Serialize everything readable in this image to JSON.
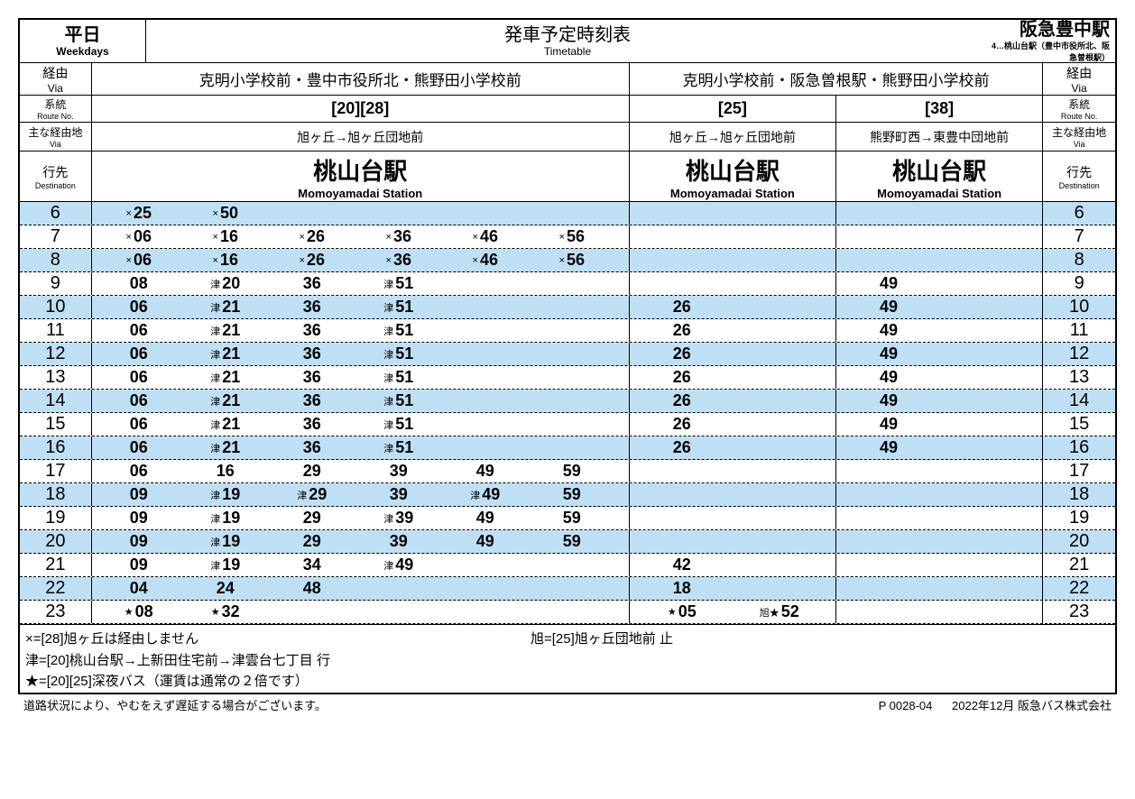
{
  "colors": {
    "stripe": "#bfdff5",
    "border": "#000000",
    "bg": "#ffffff",
    "text": "#000000"
  },
  "fonts": {
    "main": "Hiragino Sans, Meiryo, sans-serif",
    "size_body": 14,
    "size_hour": 20,
    "size_min": 18,
    "size_dest": 26
  },
  "header": {
    "day_jp": "平日",
    "day_en": "Weekdays",
    "title_jp": "発車予定時刻表",
    "title_en": "Timetable",
    "station": "阪急豊中駅",
    "station_note": "4…桃山台駅（豊中市役所北、阪急曽根駅）"
  },
  "labels": {
    "via_jp": "経由",
    "via_en": "Via",
    "route_jp": "系統",
    "route_en": "Route No.",
    "mainvia_jp": "主な経由地",
    "mainvia_en": "Via",
    "dest_jp": "行先",
    "dest_en": "Destination"
  },
  "vias": {
    "left": "克明小学校前・豊中市役所北・熊野田小学校前",
    "right": "克明小学校前・阪急曽根駅・熊野田小学校前"
  },
  "routes": {
    "col2": {
      "no": "[20][28]",
      "via": "旭ヶ丘→旭ヶ丘団地前",
      "dest_jp": "桃山台駅",
      "dest_en": "Momoyamadai Station"
    },
    "col3": {
      "no": "[25]",
      "via": "旭ヶ丘→旭ヶ丘団地前",
      "dest_jp": "桃山台駅",
      "dest_en": "Momoyamadai Station"
    },
    "col4": {
      "no": "[38]",
      "via": "熊野町西→東豊中団地前",
      "dest_jp": "桃山台駅",
      "dest_en": "Momoyamadai Station"
    }
  },
  "hours": [
    6,
    7,
    8,
    9,
    10,
    11,
    12,
    13,
    14,
    15,
    16,
    17,
    18,
    19,
    20,
    21,
    22,
    23
  ],
  "times": {
    "6": {
      "c2": [
        {
          "p": "×",
          "m": "25"
        },
        {
          "p": "×",
          "m": "50"
        }
      ],
      "c3": [],
      "c4": []
    },
    "7": {
      "c2": [
        {
          "p": "×",
          "m": "06"
        },
        {
          "p": "×",
          "m": "16"
        },
        {
          "p": "×",
          "m": "26"
        },
        {
          "p": "×",
          "m": "36"
        },
        {
          "p": "×",
          "m": "46"
        },
        {
          "p": "×",
          "m": "56"
        }
      ],
      "c3": [],
      "c4": []
    },
    "8": {
      "c2": [
        {
          "p": "×",
          "m": "06"
        },
        {
          "p": "×",
          "m": "16"
        },
        {
          "p": "×",
          "m": "26"
        },
        {
          "p": "×",
          "m": "36"
        },
        {
          "p": "×",
          "m": "46"
        },
        {
          "p": "×",
          "m": "56"
        }
      ],
      "c3": [],
      "c4": []
    },
    "9": {
      "c2": [
        {
          "m": "08"
        },
        {
          "p": "津",
          "m": "20"
        },
        {
          "m": "36"
        },
        {
          "p": "津",
          "m": "51"
        }
      ],
      "c3": [],
      "c4": [
        {
          "m": "49"
        }
      ]
    },
    "10": {
      "c2": [
        {
          "m": "06"
        },
        {
          "p": "津",
          "m": "21"
        },
        {
          "m": "36"
        },
        {
          "p": "津",
          "m": "51"
        }
      ],
      "c3": [
        {
          "m": "26"
        }
      ],
      "c4": [
        {
          "m": "49"
        }
      ]
    },
    "11": {
      "c2": [
        {
          "m": "06"
        },
        {
          "p": "津",
          "m": "21"
        },
        {
          "m": "36"
        },
        {
          "p": "津",
          "m": "51"
        }
      ],
      "c3": [
        {
          "m": "26"
        }
      ],
      "c4": [
        {
          "m": "49"
        }
      ]
    },
    "12": {
      "c2": [
        {
          "m": "06"
        },
        {
          "p": "津",
          "m": "21"
        },
        {
          "m": "36"
        },
        {
          "p": "津",
          "m": "51"
        }
      ],
      "c3": [
        {
          "m": "26"
        }
      ],
      "c4": [
        {
          "m": "49"
        }
      ]
    },
    "13": {
      "c2": [
        {
          "m": "06"
        },
        {
          "p": "津",
          "m": "21"
        },
        {
          "m": "36"
        },
        {
          "p": "津",
          "m": "51"
        }
      ],
      "c3": [
        {
          "m": "26"
        }
      ],
      "c4": [
        {
          "m": "49"
        }
      ]
    },
    "14": {
      "c2": [
        {
          "m": "06"
        },
        {
          "p": "津",
          "m": "21"
        },
        {
          "m": "36"
        },
        {
          "p": "津",
          "m": "51"
        }
      ],
      "c3": [
        {
          "m": "26"
        }
      ],
      "c4": [
        {
          "m": "49"
        }
      ]
    },
    "15": {
      "c2": [
        {
          "m": "06"
        },
        {
          "p": "津",
          "m": "21"
        },
        {
          "m": "36"
        },
        {
          "p": "津",
          "m": "51"
        }
      ],
      "c3": [
        {
          "m": "26"
        }
      ],
      "c4": [
        {
          "m": "49"
        }
      ]
    },
    "16": {
      "c2": [
        {
          "m": "06"
        },
        {
          "p": "津",
          "m": "21"
        },
        {
          "m": "36"
        },
        {
          "p": "津",
          "m": "51"
        }
      ],
      "c3": [
        {
          "m": "26"
        }
      ],
      "c4": [
        {
          "m": "49"
        }
      ]
    },
    "17": {
      "c2": [
        {
          "m": "06"
        },
        {
          "m": "16"
        },
        {
          "m": "29"
        },
        {
          "m": "39"
        },
        {
          "m": "49"
        },
        {
          "m": "59"
        }
      ],
      "c3": [],
      "c4": []
    },
    "18": {
      "c2": [
        {
          "m": "09"
        },
        {
          "p": "津",
          "m": "19"
        },
        {
          "p": "津",
          "m": "29"
        },
        {
          "m": "39"
        },
        {
          "p": "津",
          "m": "49"
        },
        {
          "m": "59"
        }
      ],
      "c3": [],
      "c4": []
    },
    "19": {
      "c2": [
        {
          "m": "09"
        },
        {
          "p": "津",
          "m": "19"
        },
        {
          "m": "29"
        },
        {
          "p": "津",
          "m": "39"
        },
        {
          "m": "49"
        },
        {
          "m": "59"
        }
      ],
      "c3": [],
      "c4": []
    },
    "20": {
      "c2": [
        {
          "m": "09"
        },
        {
          "p": "津",
          "m": "19"
        },
        {
          "m": "29"
        },
        {
          "m": "39"
        },
        {
          "m": "49"
        },
        {
          "m": "59"
        }
      ],
      "c3": [],
      "c4": []
    },
    "21": {
      "c2": [
        {
          "m": "09"
        },
        {
          "p": "津",
          "m": "19"
        },
        {
          "m": "34"
        },
        {
          "p": "津",
          "m": "49"
        }
      ],
      "c3": [
        {
          "m": "42"
        }
      ],
      "c4": []
    },
    "22": {
      "c2": [
        {
          "m": "04"
        },
        {
          "m": "24"
        },
        {
          "m": "48"
        }
      ],
      "c3": [
        {
          "m": "18"
        }
      ],
      "c4": []
    },
    "23": {
      "c2": [
        {
          "p": "★",
          "m": "08"
        },
        {
          "p": "★",
          "m": "32"
        }
      ],
      "c3": [
        {
          "p": "★",
          "m": "05"
        },
        {
          "p": "旭★",
          "m": "52"
        }
      ],
      "c4": []
    }
  },
  "stripe_hours": [
    6,
    8,
    10,
    12,
    14,
    16,
    18,
    20,
    22
  ],
  "notes": [
    "×=[28]旭ヶ丘は経由しません",
    "津=[20]桃山台駅→上新田住宅前→津雲台七丁目 行",
    "★=[20][25]深夜バス（運賃は通常の２倍です）"
  ],
  "note_right": "旭=[25]旭ヶ丘団地前 止",
  "footer": {
    "left": "道路状況により、やむをえず遅延する場合がございます。",
    "code": "P 0028-04",
    "date": "2022年12月 阪急バス株式会社"
  }
}
